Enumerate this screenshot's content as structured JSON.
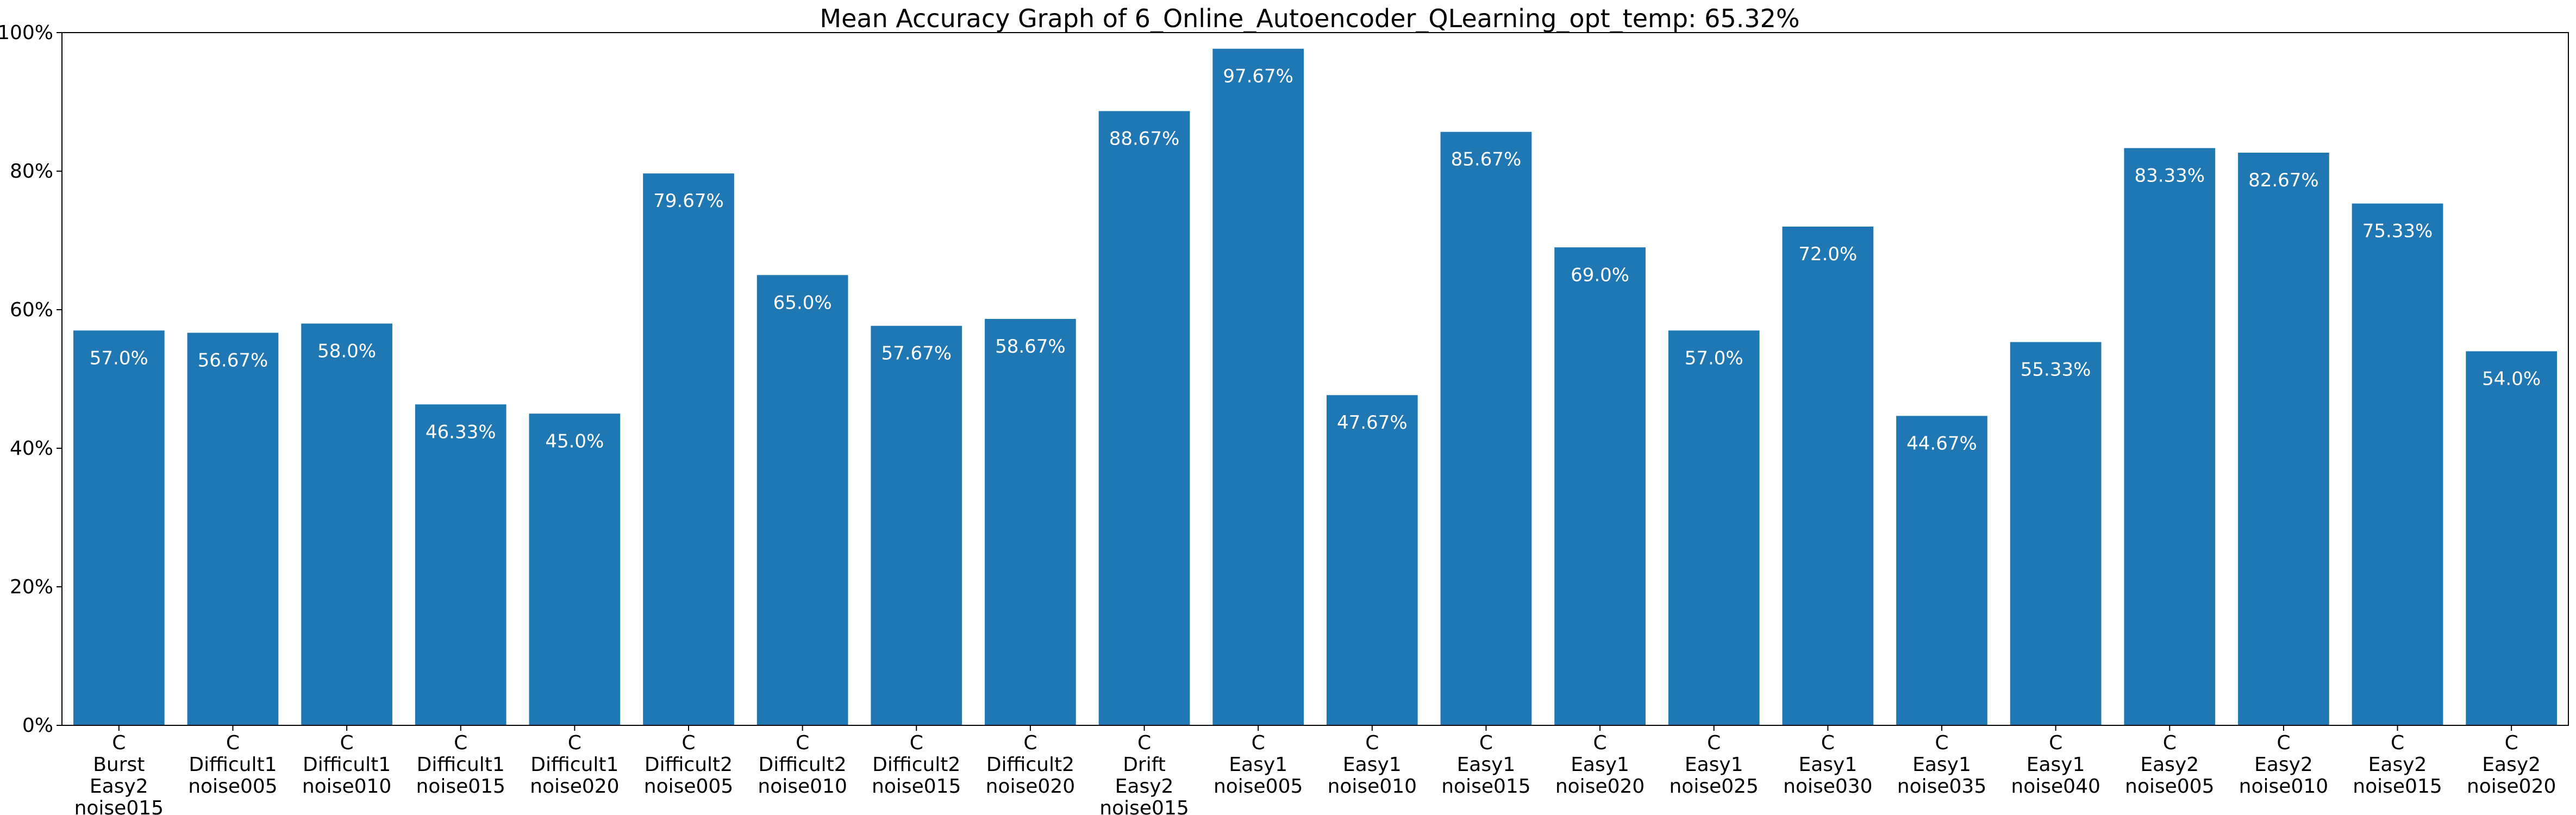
{
  "colors": {
    "bar": "#1f77b4",
    "bar_label": "#ffffff",
    "axis": "#000000"
  },
  "chart_data": {
    "type": "bar",
    "title": "Mean Accuracy Graph of 6_Online_Autoencoder_QLearning_opt_temp: 65.32%",
    "xlabel": "",
    "ylabel": "",
    "ylim": [
      0,
      100
    ],
    "y_ticks": [
      0,
      20,
      40,
      60,
      80,
      100
    ],
    "y_tick_labels": [
      "0%",
      "20%",
      "40%",
      "60%",
      "80%",
      "100%"
    ],
    "grid": false,
    "categories": [
      [
        "C",
        "Burst",
        "Easy2",
        "noise015"
      ],
      [
        "C",
        "Difficult1",
        "noise005"
      ],
      [
        "C",
        "Difficult1",
        "noise010"
      ],
      [
        "C",
        "Difficult1",
        "noise015"
      ],
      [
        "C",
        "Difficult1",
        "noise020"
      ],
      [
        "C",
        "Difficult2",
        "noise005"
      ],
      [
        "C",
        "Difficult2",
        "noise010"
      ],
      [
        "C",
        "Difficult2",
        "noise015"
      ],
      [
        "C",
        "Difficult2",
        "noise020"
      ],
      [
        "C",
        "Drift",
        "Easy2",
        "noise015"
      ],
      [
        "C",
        "Easy1",
        "noise005"
      ],
      [
        "C",
        "Easy1",
        "noise010"
      ],
      [
        "C",
        "Easy1",
        "noise015"
      ],
      [
        "C",
        "Easy1",
        "noise020"
      ],
      [
        "C",
        "Easy1",
        "noise025"
      ],
      [
        "C",
        "Easy1",
        "noise030"
      ],
      [
        "C",
        "Easy1",
        "noise035"
      ],
      [
        "C",
        "Easy1",
        "noise040"
      ],
      [
        "C",
        "Easy2",
        "noise005"
      ],
      [
        "C",
        "Easy2",
        "noise010"
      ],
      [
        "C",
        "Easy2",
        "noise015"
      ],
      [
        "C",
        "Easy2",
        "noise020"
      ]
    ],
    "values": [
      57.0,
      56.67,
      58.0,
      46.33,
      45.0,
      79.67,
      65.0,
      57.67,
      58.67,
      88.67,
      97.67,
      47.67,
      85.67,
      69.0,
      57.0,
      72.0,
      44.67,
      55.33,
      83.33,
      82.67,
      75.33,
      54.0
    ],
    "data_labels": [
      "57.0%",
      "56.67%",
      "58.0%",
      "46.33%",
      "45.0%",
      "79.67%",
      "65.0%",
      "57.67%",
      "58.67%",
      "88.67%",
      "97.67%",
      "47.67%",
      "85.67%",
      "69.0%",
      "57.0%",
      "72.0%",
      "44.67%",
      "55.33%",
      "83.33%",
      "82.67%",
      "75.33%",
      "54.0%"
    ]
  }
}
